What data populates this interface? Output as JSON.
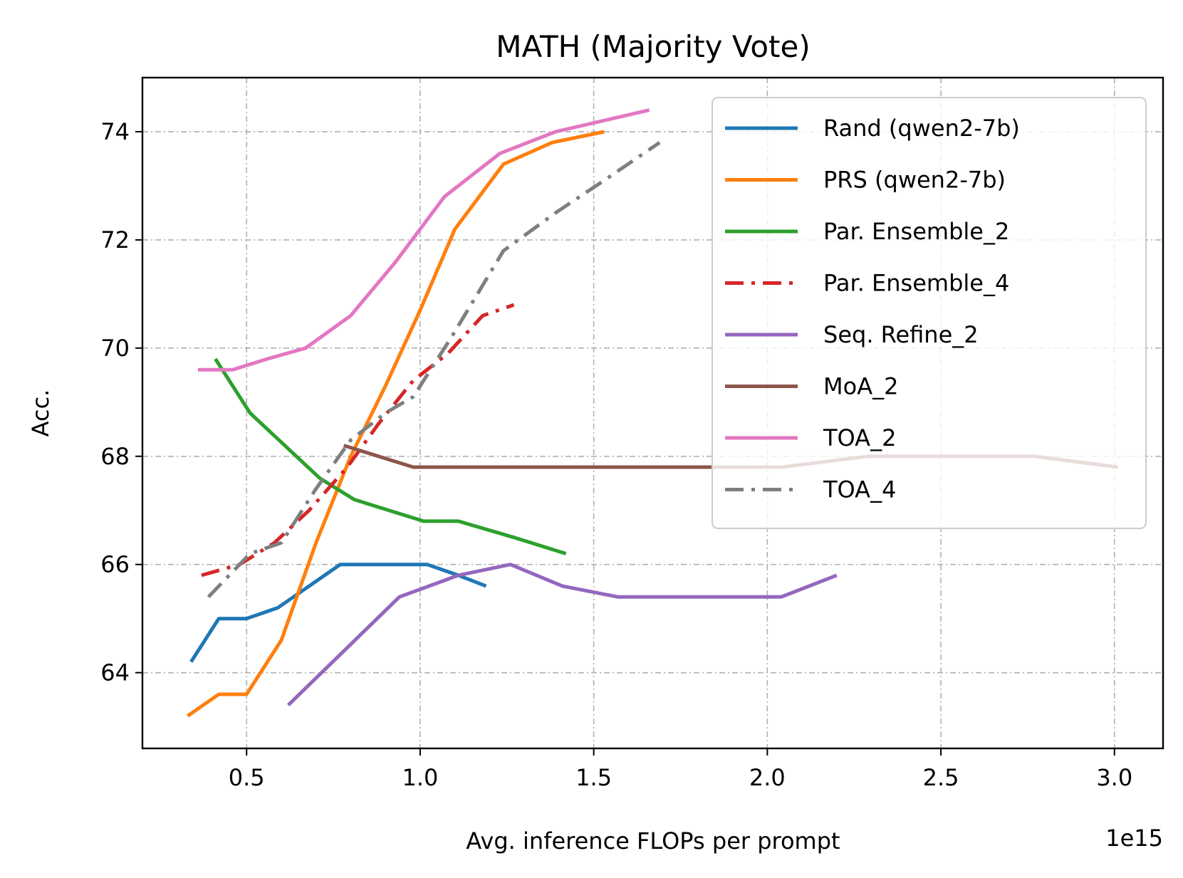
{
  "chart_data": {
    "type": "line",
    "title": "MATH (Majority Vote)",
    "xlabel": "Avg. inference FLOPs per prompt",
    "ylabel": "Acc.",
    "x_offset_label": "1e15",
    "xlim": [
      0.2,
      3.14
    ],
    "ylim": [
      62.6,
      75.0
    ],
    "xticks": [
      0.5,
      1.0,
      1.5,
      2.0,
      2.5,
      3.0
    ],
    "xtick_labels": [
      "0.5",
      "1.0",
      "1.5",
      "2.0",
      "2.5",
      "3.0"
    ],
    "yticks": [
      64,
      66,
      68,
      70,
      72,
      74
    ],
    "ytick_labels": [
      "64",
      "66",
      "68",
      "70",
      "72",
      "74"
    ],
    "grid": true,
    "legend_position": "top-right",
    "series": [
      {
        "name": "Rand (qwen2-7b)",
        "color": "#1f77b4",
        "style": "solid",
        "x": [
          0.34,
          0.42,
          0.5,
          0.59,
          0.68,
          0.77,
          0.87,
          1.02,
          1.11,
          1.19
        ],
        "y": [
          64.2,
          65.0,
          65.0,
          65.2,
          65.6,
          66.0,
          66.0,
          66.0,
          65.8,
          65.6
        ]
      },
      {
        "name": "PRS (qwen2-7b)",
        "color": "#ff7f0e",
        "style": "solid",
        "x": [
          0.33,
          0.42,
          0.5,
          0.6,
          0.7,
          0.8,
          0.9,
          1.0,
          1.1,
          1.24,
          1.38,
          1.53
        ],
        "y": [
          63.2,
          63.6,
          63.6,
          64.6,
          66.4,
          68.0,
          69.3,
          70.7,
          72.2,
          73.4,
          73.8,
          74.0
        ]
      },
      {
        "name": "Par. Ensemble_2",
        "color": "#2ca02c",
        "style": "solid",
        "x": [
          0.41,
          0.51,
          0.61,
          0.71,
          0.81,
          0.91,
          1.01,
          1.11,
          1.27,
          1.42
        ],
        "y": [
          69.8,
          68.8,
          68.2,
          67.6,
          67.2,
          67.0,
          66.8,
          66.8,
          66.5,
          66.2
        ]
      },
      {
        "name": "Par. Ensemble_4",
        "color": "#d62728",
        "style": "dashdot",
        "x": [
          0.37,
          0.48,
          0.58,
          0.68,
          0.79,
          0.88,
          0.98,
          1.08,
          1.18,
          1.27
        ],
        "y": [
          65.8,
          66.0,
          66.4,
          67.0,
          67.8,
          68.6,
          69.4,
          69.9,
          70.6,
          70.8
        ]
      },
      {
        "name": "Seq. Refine_2",
        "color": "#9467bd",
        "style": "solid",
        "x": [
          0.62,
          0.78,
          0.94,
          1.11,
          1.26,
          1.41,
          1.57,
          1.83,
          2.04,
          2.2
        ],
        "y": [
          63.4,
          64.4,
          65.4,
          65.8,
          66.0,
          65.6,
          65.4,
          65.4,
          65.4,
          65.8
        ]
      },
      {
        "name": "MoA_2",
        "color": "#8c564b",
        "style": "solid",
        "x": [
          0.78,
          0.98,
          1.25,
          1.52,
          1.78,
          2.04,
          2.29,
          2.54,
          2.77,
          3.01
        ],
        "y": [
          68.2,
          67.8,
          67.8,
          67.8,
          67.8,
          67.8,
          68.0,
          68.0,
          68.0,
          67.8
        ]
      },
      {
        "name": "TOA_2",
        "color": "#e377c2",
        "style": "solid",
        "x": [
          0.36,
          0.46,
          0.56,
          0.67,
          0.8,
          0.93,
          1.07,
          1.23,
          1.39,
          1.66
        ],
        "y": [
          69.6,
          69.6,
          69.8,
          70.0,
          70.6,
          71.6,
          72.8,
          73.6,
          74.0,
          74.4
        ]
      },
      {
        "name": "TOA_4",
        "color": "#7f7f7f",
        "style": "dashdot",
        "x": [
          0.39,
          0.51,
          0.6,
          0.7,
          0.8,
          0.9,
          0.98,
          1.09,
          1.24,
          1.39,
          1.53,
          1.69
        ],
        "y": [
          65.4,
          66.2,
          66.4,
          67.4,
          68.3,
          68.8,
          69.1,
          70.2,
          71.8,
          72.5,
          73.1,
          73.8
        ]
      }
    ]
  }
}
